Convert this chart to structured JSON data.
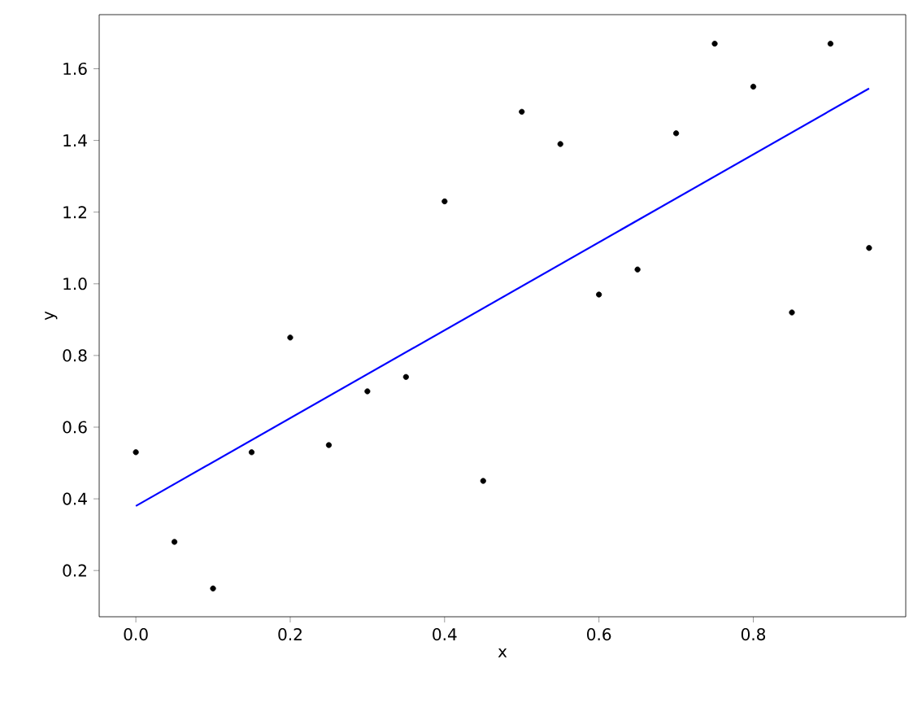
{
  "chart_data": {
    "type": "scatter",
    "xlabel": "x",
    "ylabel": "y",
    "xlim": [
      -0.0475,
      0.9975
    ],
    "ylim": [
      0.071,
      1.751
    ],
    "xticks": [
      {
        "value": 0,
        "label": "0.0"
      },
      0.2,
      0.4,
      0.6,
      0.8
    ],
    "yticks": [
      0.2,
      0.4,
      0.6,
      0.8,
      {
        "value": 1.0,
        "label": "1.0"
      },
      1.2,
      1.4,
      1.6
    ],
    "grid": false,
    "series": [
      {
        "color": "#000000",
        "marker": "circle",
        "x": [
          0,
          0.05,
          0.1,
          0.15,
          0.2,
          0.25,
          0.3,
          0.35,
          0.4,
          0.45,
          0.5,
          0.55,
          0.6,
          0.65,
          0.7,
          0.75,
          0.8,
          0.85,
          0.9,
          0.95
        ],
        "values": [
          0.53,
          0.28,
          0.15,
          0.53,
          0.85,
          0.55,
          0.7,
          0.74,
          1.23,
          0.45,
          1.48,
          1.39,
          0.97,
          1.04,
          1.42,
          1.67,
          1.55,
          0.92,
          1.67,
          1.1
        ]
      },
      {
        "type": "line",
        "color": "#0000ff",
        "marker": "none",
        "line_style": "solid",
        "x": [
          0,
          0.95
        ],
        "values": [
          0.38,
          1.545
        ]
      }
    ]
  }
}
